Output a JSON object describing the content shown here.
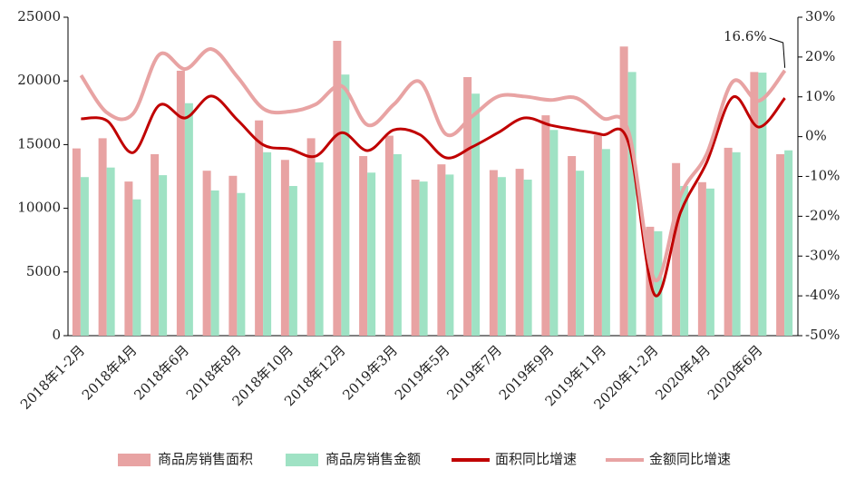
{
  "chart_data": {
    "type": "bar",
    "categories": [
      "2018年1-2月",
      null,
      "2018年4月",
      null,
      "2018年6月",
      null,
      "2018年8月",
      null,
      "2018年10月",
      null,
      "2018年12月",
      null,
      "2019年3月",
      null,
      "2019年5月",
      null,
      "2019年7月",
      null,
      "2019年9月",
      null,
      "2019年11月",
      null,
      "2020年1-2月",
      null,
      "2020年4月",
      null,
      "2020年6月",
      null
    ],
    "series": [
      {
        "name": "商品房销售面积",
        "type": "bar",
        "color": "#e8a3a3",
        "values": [
          14700,
          15500,
          12100,
          14250,
          20800,
          12950,
          12550,
          16900,
          13800,
          15500,
          23150,
          14100,
          15700,
          12250,
          13450,
          20300,
          13000,
          13100,
          17300,
          14100,
          15750,
          22700,
          8550,
          13550,
          12050,
          14750,
          20700,
          14250
        ]
      },
      {
        "name": "商品房销售金额",
        "type": "bar",
        "color": "#9fe2c4",
        "values": [
          12450,
          13200,
          10700,
          12600,
          18250,
          11400,
          11200,
          14400,
          11750,
          13600,
          20500,
          12800,
          14250,
          12100,
          12650,
          19000,
          12450,
          12250,
          16150,
          12950,
          14650,
          20700,
          8200,
          11750,
          11550,
          14400,
          20650,
          14550
        ]
      },
      {
        "name": "面积同比增速",
        "type": "line",
        "axis": "y2",
        "color": "#c00000",
        "values": [
          4.5,
          4.0,
          -4.0,
          7.9,
          4.7,
          10.2,
          4.2,
          -2.1,
          -3.1,
          -4.9,
          1.0,
          -3.5,
          1.7,
          0.5,
          -5.3,
          -2.6,
          1.0,
          4.7,
          2.9,
          1.7,
          0.5,
          -1.5,
          -39.7,
          -19,
          -6.5,
          9.9,
          2.4,
          9.7
        ]
      },
      {
        "name": "金额同比增速",
        "type": "line",
        "axis": "y2",
        "color": "#e8a3a3",
        "values": [
          15.4,
          6.0,
          5.8,
          20.6,
          17.0,
          22.0,
          15.0,
          7.0,
          6.3,
          8.1,
          12.7,
          2.9,
          8.1,
          13.8,
          0.6,
          5.1,
          10.1,
          10.1,
          9.2,
          9.7,
          4.7,
          1.3,
          -35.9,
          -14.7,
          -4.4,
          13.8,
          9.0,
          16.6
        ]
      }
    ],
    "annotation": "16.6%",
    "ylim": [
      0,
      25000
    ],
    "yticks": [
      0,
      5000,
      10000,
      15000,
      20000,
      25000
    ],
    "y2lim": [
      -50,
      30
    ],
    "y2ticks": [
      {
        "value": -50,
        "label": "-50%"
      },
      {
        "value": -40,
        "label": "-40%"
      },
      {
        "value": -30,
        "label": "-30%"
      },
      {
        "value": -20,
        "label": "-20%"
      },
      {
        "value": -10,
        "label": "-10%"
      },
      {
        "value": 0,
        "label": "0%"
      },
      {
        "value": 10,
        "label": "10%"
      },
      {
        "value": 20,
        "label": "20%"
      },
      {
        "value": 30,
        "label": "30%"
      }
    ],
    "legend": "bottom"
  }
}
